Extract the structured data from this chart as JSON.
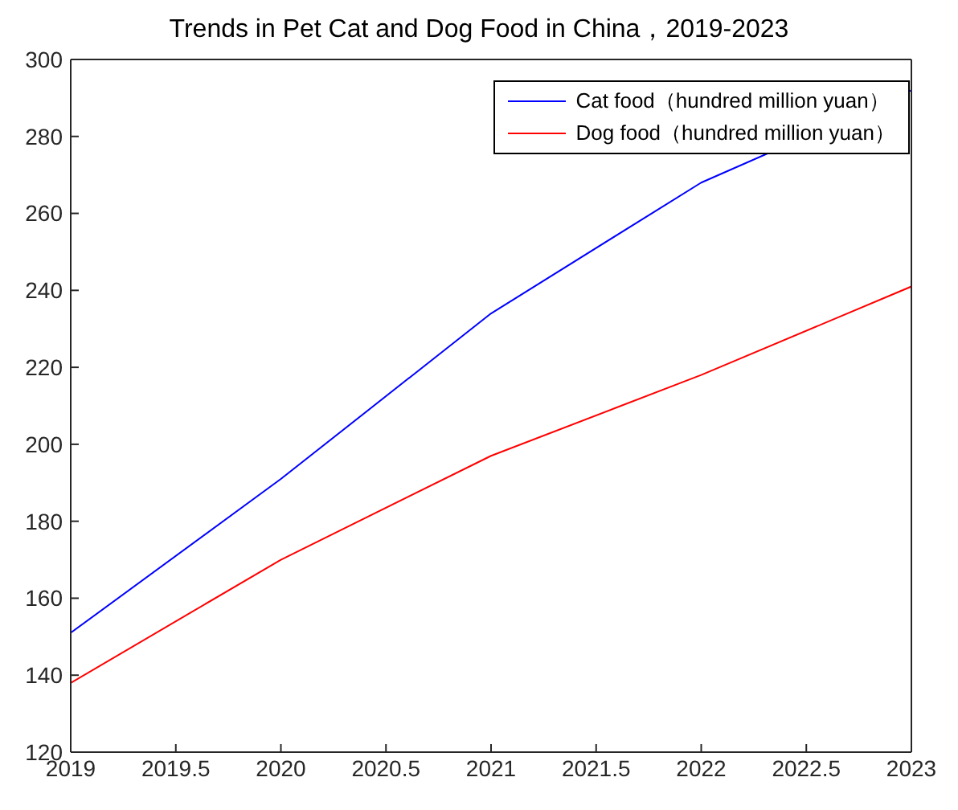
{
  "chart_data": {
    "type": "line",
    "title": "Trends in Pet Cat and Dog Food in China，2019-2023",
    "x": [
      2019,
      2020,
      2021,
      2022,
      2023
    ],
    "series": [
      {
        "name": "Cat food（hundred million yuan）",
        "color": "#0000ff",
        "values": [
          151,
          191,
          234,
          268,
          292
        ]
      },
      {
        "name": "Dog food（hundred million yuan）",
        "color": "#ff0000",
        "values": [
          138,
          170,
          197,
          218,
          241
        ]
      }
    ],
    "xlim": [
      2019,
      2023
    ],
    "xticks": [
      2019,
      2019.5,
      2020,
      2020.5,
      2021,
      2021.5,
      2022,
      2022.5,
      2023
    ],
    "ylim": [
      120,
      300
    ],
    "yticks": [
      120,
      140,
      160,
      180,
      200,
      220,
      240,
      260,
      280,
      300
    ],
    "legend": "top right",
    "marker": "none",
    "line_style": "solid"
  }
}
